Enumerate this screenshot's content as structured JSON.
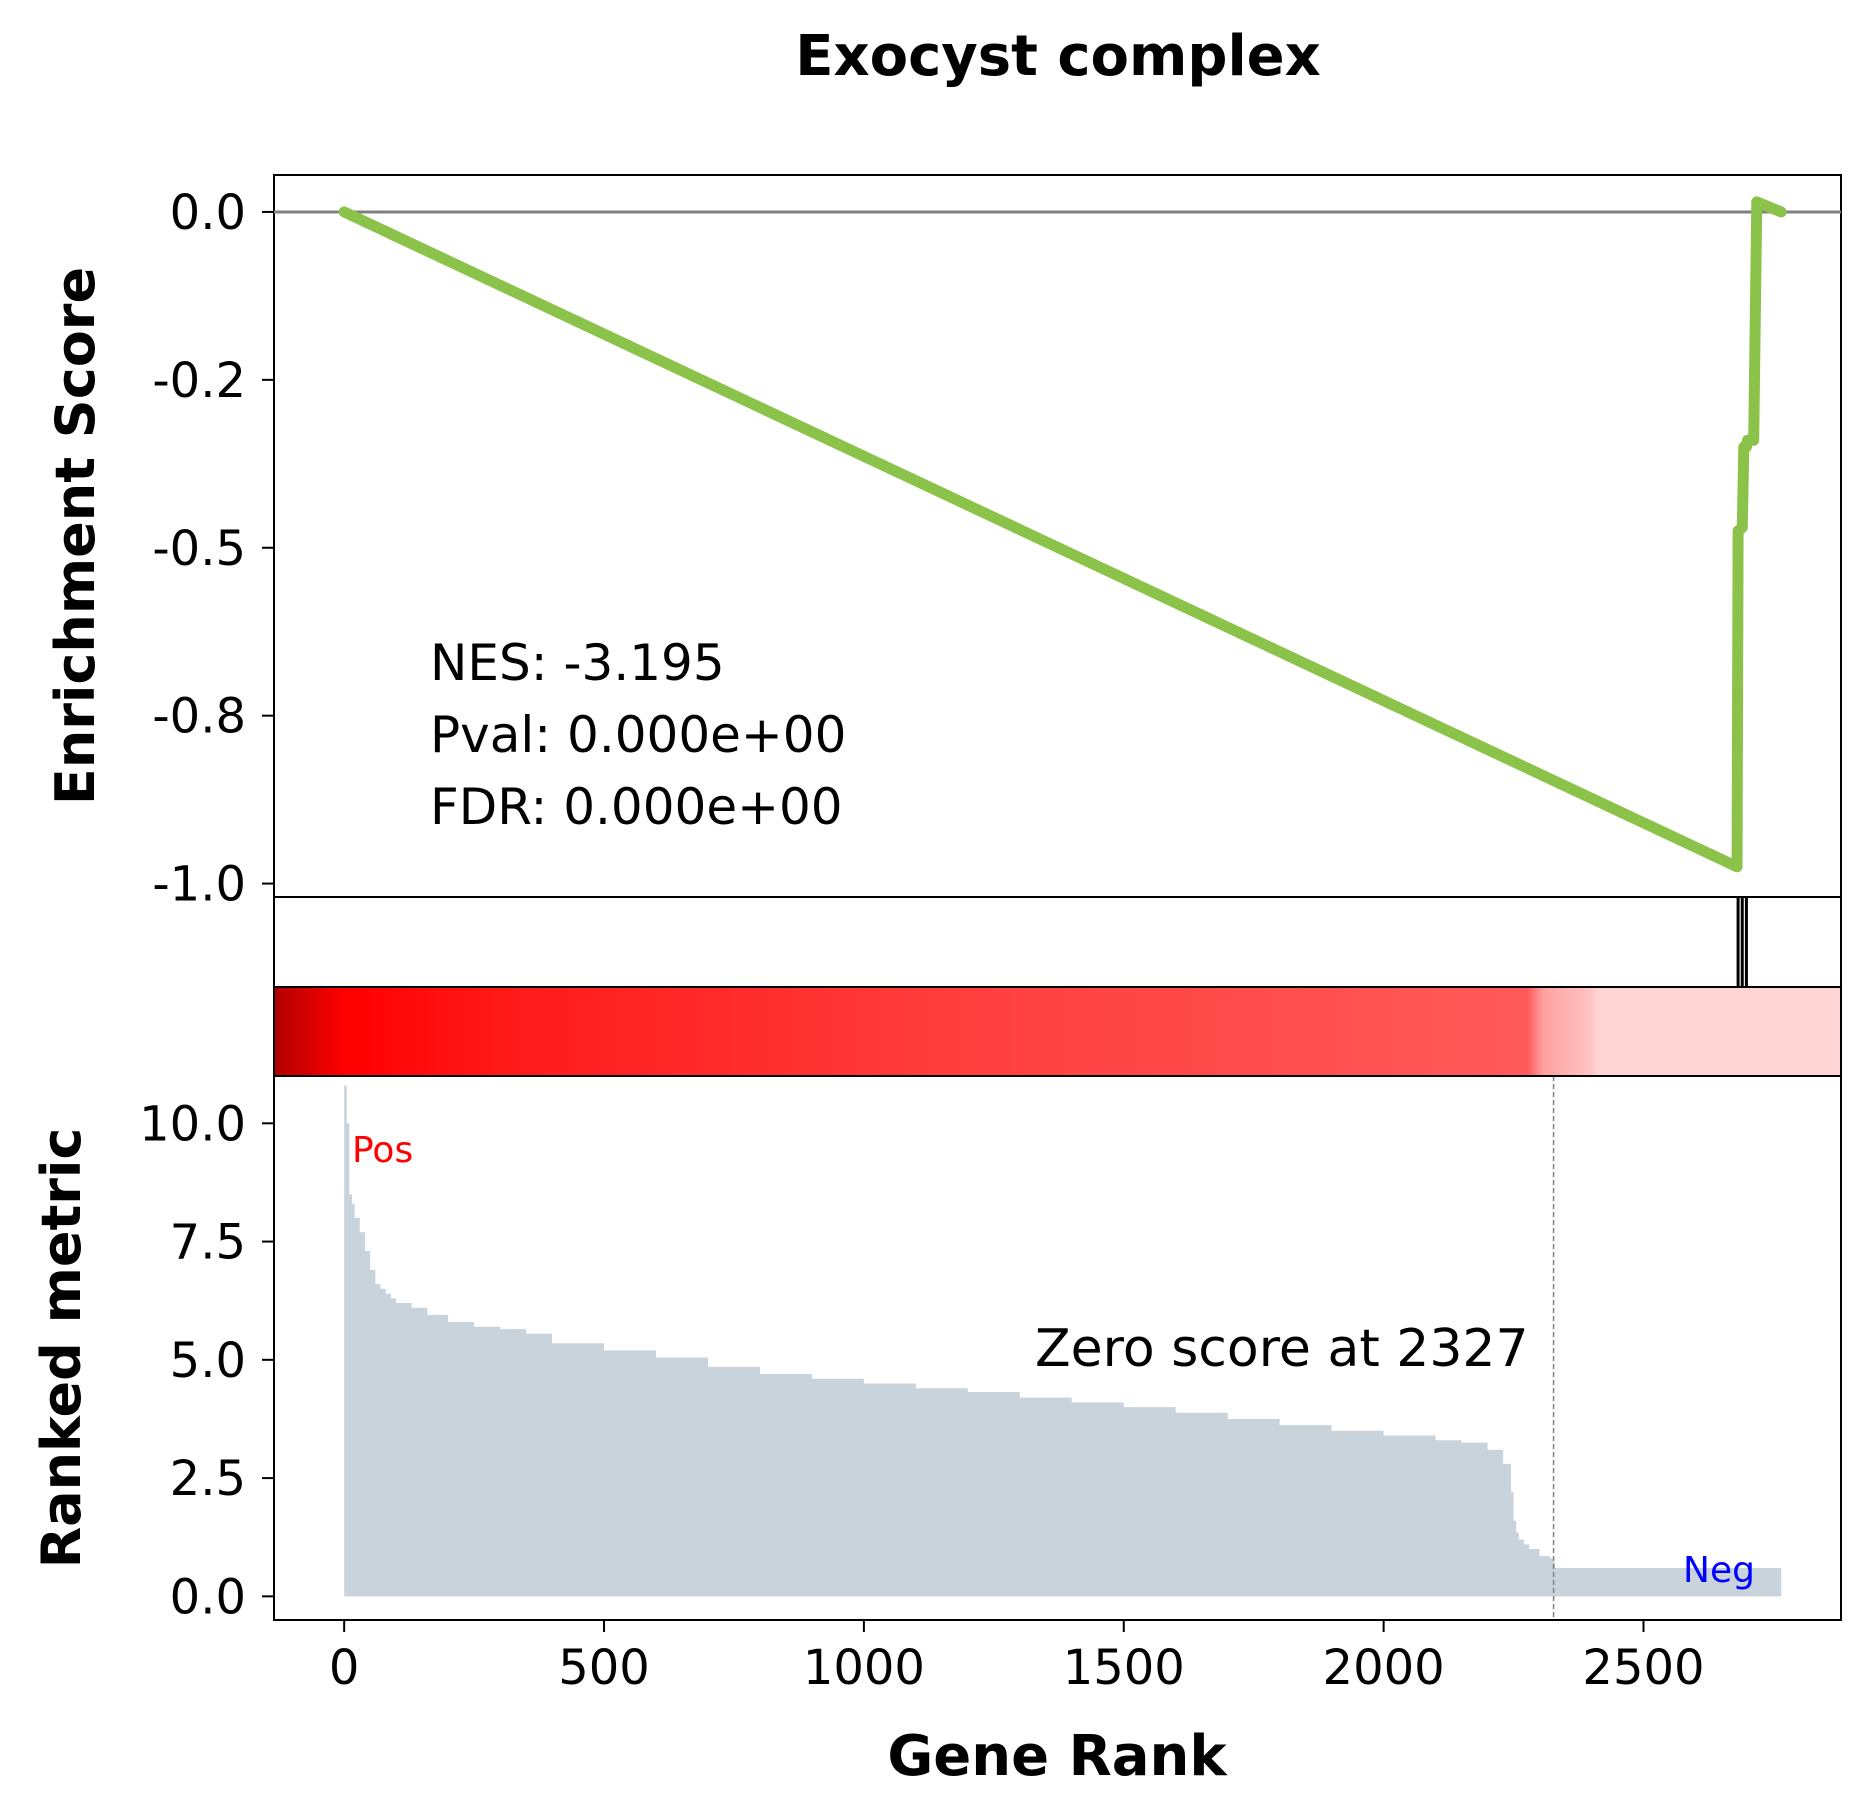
{
  "chart_data": {
    "type": "line",
    "title": "Exocyst complex",
    "xlabel": "Gene Rank",
    "x_ticks": [
      0,
      500,
      1000,
      1500,
      2000,
      2500
    ],
    "xlim": [
      -135,
      2880
    ],
    "enrichment_panel": {
      "ylabel": "Enrichment Score",
      "ylim": [
        -1.02,
        0.055
      ],
      "y_ticks": [
        0.0,
        -0.25,
        -0.5,
        -0.75,
        -1.0
      ],
      "y_tick_labels": [
        "0.0",
        "-0.2",
        "-0.5",
        "-0.8",
        "-1.0"
      ],
      "zero_line": 0.0,
      "line_color": "#8bc34a",
      "running_score": {
        "x": [
          0,
          2680,
          2682,
          2690,
          2693,
          2698,
          2700,
          2712,
          2718,
          2765
        ],
        "y": [
          0.0,
          -0.975,
          -0.475,
          -0.47,
          -0.35,
          -0.35,
          -0.34,
          -0.34,
          0.015,
          0.0
        ]
      },
      "stats": {
        "nes": "NES: -3.195",
        "pval": "Pval: 0.000e+00",
        "fdr": "FDR: 0.000e+00"
      }
    },
    "hits_panel": {
      "hit_ranks": [
        2682,
        2690,
        2698
      ]
    },
    "color_bar": {
      "colors": [
        "#c40000",
        "#ff0000",
        "#ff3030",
        "#ff5555",
        "#ffd0d0"
      ]
    },
    "ranked_metric_panel": {
      "ylabel": "Ranked metric",
      "ylim": [
        -0.5,
        11.0
      ],
      "y_ticks": [
        0.0,
        2.5,
        5.0,
        7.5,
        10.0
      ],
      "y_tick_labels": [
        "0.0",
        "2.5",
        "5.0",
        "7.5",
        "10.0"
      ],
      "fill_color": "#c9d3dc",
      "metric_curve": {
        "x": [
          0,
          2,
          5,
          10,
          15,
          20,
          30,
          40,
          50,
          60,
          70,
          80,
          90,
          100,
          130,
          160,
          200,
          250,
          300,
          350,
          400,
          500,
          600,
          700,
          800,
          900,
          1000,
          1100,
          1200,
          1300,
          1400,
          1500,
          1600,
          1700,
          1800,
          1900,
          2000,
          2100,
          2150,
          2200,
          2230,
          2245,
          2250,
          2255,
          2260,
          2270,
          2280,
          2300,
          2320,
          2327,
          2330,
          2765
        ],
        "y": [
          10.8,
          10.8,
          10.0,
          8.5,
          8.3,
          8.0,
          7.7,
          7.3,
          6.9,
          6.6,
          6.5,
          6.4,
          6.3,
          6.2,
          6.1,
          5.95,
          5.8,
          5.7,
          5.65,
          5.55,
          5.35,
          5.2,
          5.05,
          4.85,
          4.7,
          4.6,
          4.5,
          4.4,
          4.32,
          4.2,
          4.1,
          4.0,
          3.88,
          3.75,
          3.62,
          3.5,
          3.4,
          3.3,
          3.25,
          3.1,
          2.8,
          2.2,
          1.6,
          1.35,
          1.2,
          1.1,
          1.0,
          0.85,
          0.8,
          0.72,
          0.6,
          0.6
        ]
      },
      "zero_score_rank": 2327,
      "zero_score_label": "Zero score at 2327",
      "pos_label": "Pos",
      "neg_label": "Neg",
      "pos_color": "#ff0000",
      "neg_color": "#0000ff"
    }
  }
}
